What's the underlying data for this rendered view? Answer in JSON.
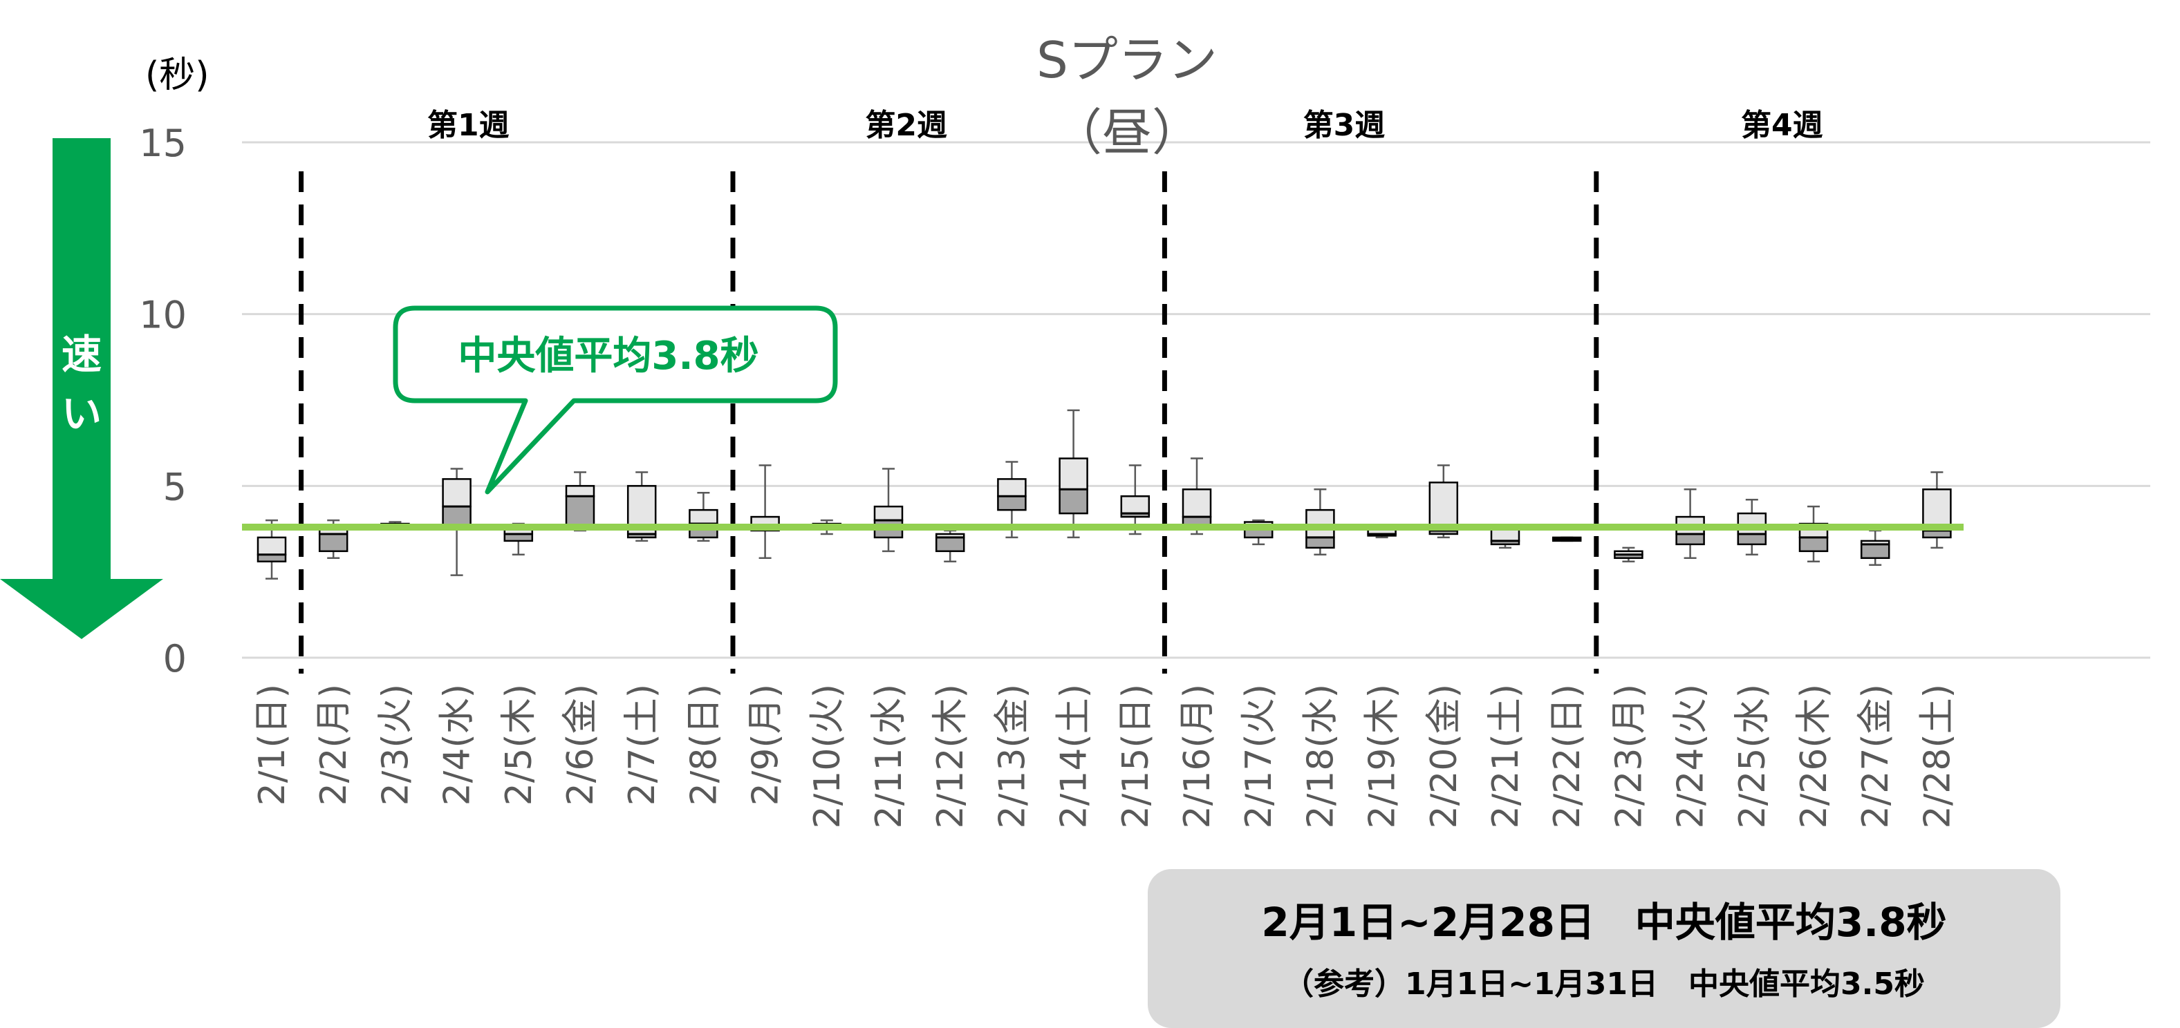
{
  "chart_data": {
    "type": "box",
    "title": "Sプラン（昼）",
    "ylabel": "(秒)",
    "ylim": [
      0,
      15
    ],
    "yticks": [
      0,
      5,
      10,
      15
    ],
    "grid": true,
    "categories": [
      "2/1(日)",
      "2/2(月)",
      "2/3(火)",
      "2/4(水)",
      "2/5(木)",
      "2/6(金)",
      "2/7(土)",
      "2/8(日)",
      "2/9(月)",
      "2/10(火)",
      "2/11(水)",
      "2/12(木)",
      "2/13(金)",
      "2/14(土)",
      "2/15(日)",
      "2/16(月)",
      "2/17(火)",
      "2/18(水)",
      "2/19(木)",
      "2/20(金)",
      "2/21(土)",
      "2/22(日)",
      "2/23(月)",
      "2/24(火)",
      "2/25(水)",
      "2/26(木)",
      "2/27(金)",
      "2/28(土)"
    ],
    "boxes": [
      {
        "min": 2.3,
        "q1": 2.8,
        "median": 3.0,
        "q3": 3.5,
        "max": 4.0
      },
      {
        "min": 2.9,
        "q1": 3.1,
        "median": 3.6,
        "q3": 3.8,
        "max": 4.0
      },
      {
        "min": 3.8,
        "q1": 3.82,
        "median": 3.85,
        "q3": 3.9,
        "max": 3.95
      },
      {
        "min": 2.4,
        "q1": 3.8,
        "median": 4.4,
        "q3": 5.2,
        "max": 5.5
      },
      {
        "min": 3.0,
        "q1": 3.4,
        "median": 3.6,
        "q3": 3.8,
        "max": 3.9
      },
      {
        "min": 3.7,
        "q1": 3.8,
        "median": 4.7,
        "q3": 5.0,
        "max": 5.4
      },
      {
        "min": 3.4,
        "q1": 3.5,
        "median": 3.6,
        "q3": 5.0,
        "max": 5.4
      },
      {
        "min": 3.4,
        "q1": 3.5,
        "median": 3.9,
        "q3": 4.3,
        "max": 4.8
      },
      {
        "min": 2.9,
        "q1": 3.7,
        "median": 3.8,
        "q3": 4.1,
        "max": 5.6
      },
      {
        "min": 3.6,
        "q1": 3.75,
        "median": 3.8,
        "q3": 3.9,
        "max": 4.0
      },
      {
        "min": 3.1,
        "q1": 3.5,
        "median": 4.0,
        "q3": 4.4,
        "max": 5.5
      },
      {
        "min": 2.8,
        "q1": 3.1,
        "median": 3.5,
        "q3": 3.6,
        "max": 3.7
      },
      {
        "min": 3.5,
        "q1": 4.3,
        "median": 4.7,
        "q3": 5.2,
        "max": 5.7
      },
      {
        "min": 3.5,
        "q1": 4.2,
        "median": 4.9,
        "q3": 5.8,
        "max": 7.2
      },
      {
        "min": 3.6,
        "q1": 4.1,
        "median": 4.2,
        "q3": 4.7,
        "max": 5.6
      },
      {
        "min": 3.6,
        "q1": 3.8,
        "median": 4.1,
        "q3": 4.9,
        "max": 5.8
      },
      {
        "min": 3.3,
        "q1": 3.5,
        "median": 3.8,
        "q3": 3.95,
        "max": 4.0
      },
      {
        "min": 3.0,
        "q1": 3.2,
        "median": 3.5,
        "q3": 4.3,
        "max": 4.9
      },
      {
        "min": 3.5,
        "q1": 3.55,
        "median": 3.6,
        "q3": 3.75,
        "max": 3.8
      },
      {
        "min": 3.5,
        "q1": 3.6,
        "median": 3.7,
        "q3": 5.1,
        "max": 5.6
      },
      {
        "min": 3.2,
        "q1": 3.3,
        "median": 3.4,
        "q3": 3.8,
        "max": 3.8
      },
      {
        "min": 3.4,
        "q1": 3.4,
        "median": 3.45,
        "q3": 3.5,
        "max": 3.5
      },
      {
        "min": 2.8,
        "q1": 2.9,
        "median": 3.0,
        "q3": 3.1,
        "max": 3.2
      },
      {
        "min": 2.9,
        "q1": 3.3,
        "median": 3.6,
        "q3": 4.1,
        "max": 4.9
      },
      {
        "min": 3.0,
        "q1": 3.3,
        "median": 3.6,
        "q3": 4.2,
        "max": 4.6
      },
      {
        "min": 2.8,
        "q1": 3.1,
        "median": 3.5,
        "q3": 3.9,
        "max": 4.4
      },
      {
        "min": 2.7,
        "q1": 2.9,
        "median": 3.3,
        "q3": 3.4,
        "max": 3.7
      },
      {
        "min": 3.2,
        "q1": 3.5,
        "median": 3.7,
        "q3": 4.9,
        "max": 5.4
      }
    ],
    "reference_line": {
      "value": 3.8,
      "color": "#92d050"
    },
    "weeks": [
      {
        "label": "第1週"
      },
      {
        "label": "第2週"
      },
      {
        "label": "第3週"
      },
      {
        "label": "第4週"
      }
    ]
  },
  "speed_indicator": {
    "label": "速い",
    "color": "#00a550"
  },
  "callout": {
    "text": "中央値平均3.8秒",
    "color": "#00a550"
  },
  "summary": {
    "line1": "2月1日~2月28日　中央値平均3.8秒",
    "line2": "（参考）1月1日~1月31日　中央値平均3.5秒"
  }
}
